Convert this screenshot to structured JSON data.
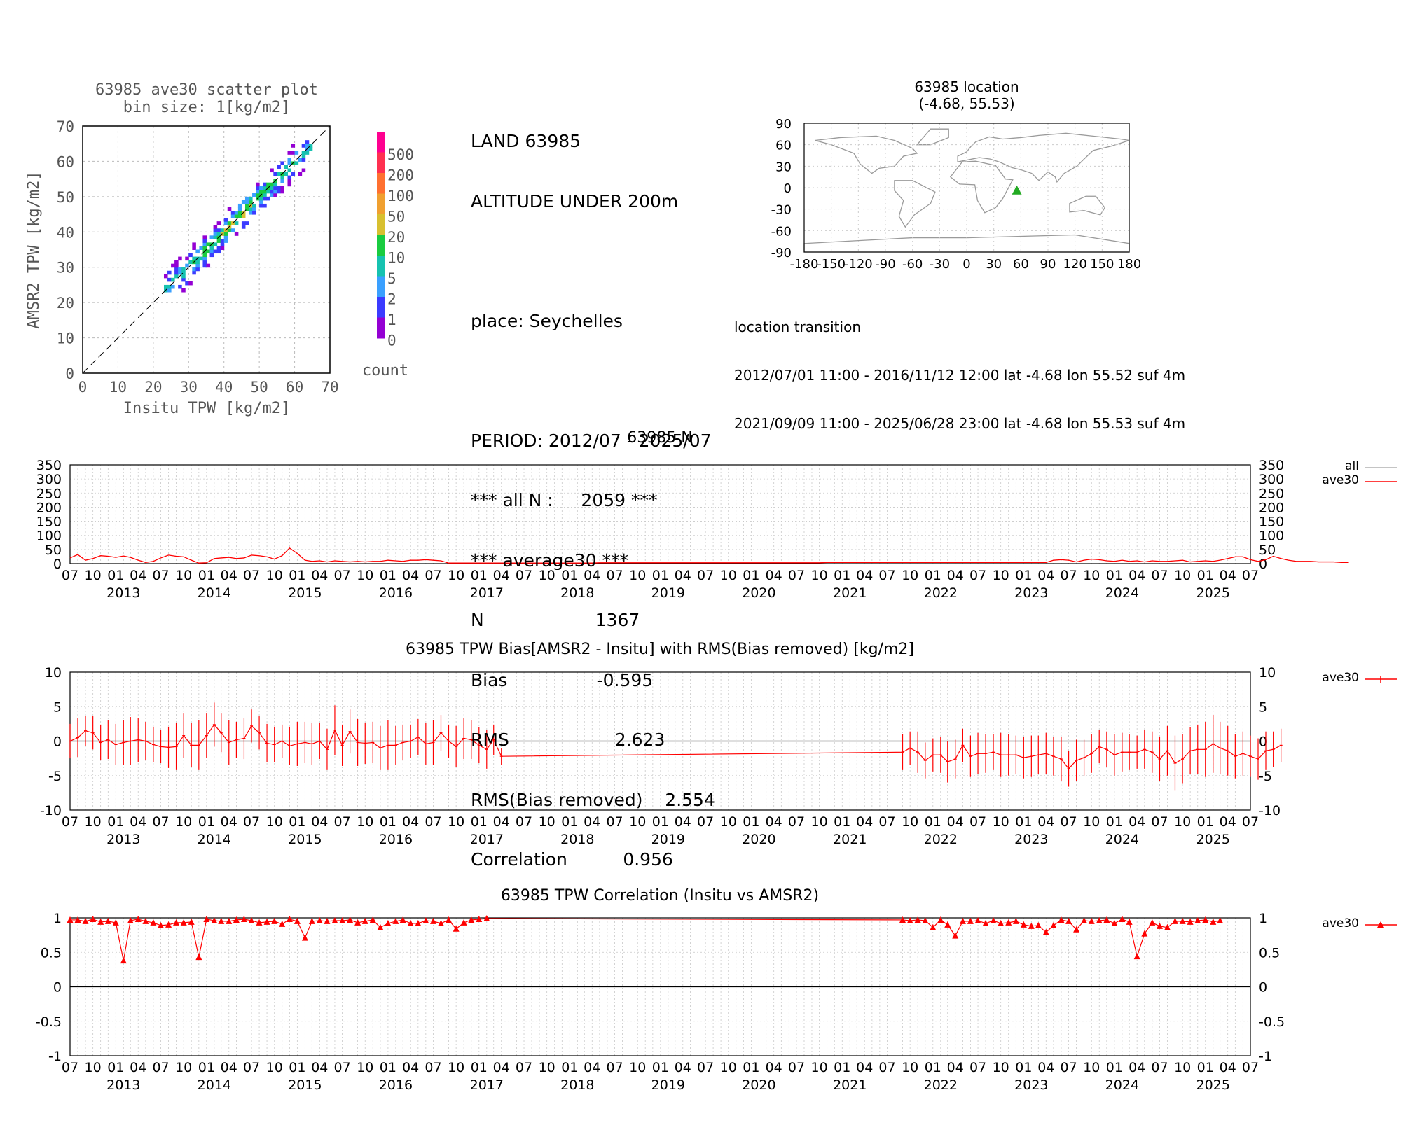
{
  "header": {
    "stats": [
      "LAND 63985",
      "ALTITUDE UNDER 200m",
      "",
      "place: Seychelles",
      "",
      "PERIOD: 2012/07 - 2025/07",
      "*** all N :     2059 ***",
      "*** average30 ***",
      "N                    1367",
      "Bias                -0.595",
      "RMS                   2.623",
      "RMS(Bias removed)    2.554",
      "Correlation          0.956"
    ]
  },
  "location_transition": {
    "title": "location transition",
    "lines": [
      "2012/07/01 11:00 - 2016/11/12 12:00 lat -4.68 lon 55.52 suf 4m",
      "2021/09/09 11:00 - 2025/06/28 23:00 lat -4.68 lon 55.53 suf 4m"
    ]
  },
  "colors": {
    "series": "#ff0000",
    "all_series": "#b0b0b0",
    "marker_map": "#22aa22"
  },
  "chart_data": [
    {
      "type": "heatmap",
      "title": "63985 ave30 scatter plot",
      "subtitle": "bin size: 1[kg/m2]",
      "xlabel": "Insitu TPW [kg/m2]",
      "ylabel": "AMSR2 TPW [kg/m2]",
      "xlim": [
        0,
        70
      ],
      "ylim": [
        0,
        70
      ],
      "ticks": [
        0,
        10,
        20,
        30,
        40,
        50,
        60,
        70
      ],
      "colorbar": {
        "label": "count",
        "levels": [
          "500",
          "200",
          "100",
          "50",
          "20",
          "10",
          "5",
          "2",
          "1",
          "0"
        ]
      },
      "one_to_one_line": true
    },
    {
      "type": "scatter",
      "title": "63985 location",
      "subtitle": "(-4.68, 55.53)",
      "xlim": [
        -180,
        180
      ],
      "ylim": [
        -90,
        90
      ],
      "xticks": [
        "-180",
        "-150",
        "-120",
        "-90",
        "-60",
        "-30",
        "0",
        "30",
        "60",
        "90",
        "120",
        "150",
        "180"
      ],
      "yticks": [
        "90",
        "60",
        "30",
        "0",
        "-30",
        "-60",
        "-90"
      ],
      "points": [
        {
          "lon": 55.53,
          "lat": -4.68
        }
      ]
    },
    {
      "type": "line",
      "title": "63985 N",
      "ylim": [
        0,
        350
      ],
      "yticks": [
        "350",
        "300",
        "250",
        "200",
        "150",
        "100",
        "50",
        "0"
      ],
      "legend": [
        "all",
        "ave30"
      ],
      "x_start": "2012-07",
      "series": [
        {
          "name": "ave30",
          "values": [
            20,
            32,
            12,
            18,
            28,
            26,
            22,
            27,
            22,
            12,
            4,
            8,
            20,
            30,
            26,
            24,
            12,
            2,
            3,
            18,
            20,
            22,
            18,
            20,
            30,
            28,
            24,
            16,
            28,
            55,
            36,
            12,
            8,
            10,
            6,
            10,
            8,
            6,
            8,
            6,
            8,
            8,
            12,
            10,
            8,
            12,
            12,
            14,
            12,
            10,
            2,
            2,
            2,
            2,
            2,
            2,
            2,
            2,
            2,
            2,
            2,
            2,
            2,
            2,
            2,
            2,
            2,
            2,
            2,
            2,
            3,
            3,
            3,
            3,
            3,
            3,
            3,
            3,
            3,
            3,
            3,
            3,
            3,
            3,
            3,
            3,
            3,
            3,
            3,
            3,
            3,
            3,
            3,
            3,
            3,
            3,
            3,
            3,
            3,
            3,
            4,
            4,
            4,
            4,
            4,
            4,
            4,
            4,
            4,
            4,
            4,
            4,
            4,
            4,
            4,
            4,
            4,
            4,
            4,
            4,
            4,
            4,
            4,
            4,
            4,
            4,
            4,
            4,
            4,
            4,
            12,
            14,
            12,
            6,
            12,
            16,
            14,
            10,
            8,
            12,
            8,
            10,
            6,
            10,
            8,
            8,
            10,
            12,
            6,
            8,
            10,
            8,
            12,
            18,
            24,
            24,
            14,
            8,
            14,
            26,
            18,
            12,
            8,
            8,
            8,
            6,
            6,
            6,
            4,
            4
          ]
        }
      ]
    },
    {
      "type": "line",
      "title": "63985 TPW Bias[AMSR2 - Insitu] with RMS(Bias removed) [kg/m2]",
      "ylim": [
        -10,
        10
      ],
      "yticks": [
        "10",
        "5",
        "0",
        "-5",
        "-10"
      ],
      "legend": [
        "ave30"
      ],
      "x_start": "2012-07",
      "series": [
        {
          "name": "ave30",
          "segment1_start": "2012-07",
          "bias": [
            0,
            0.5,
            1.5,
            1.2,
            -0.2,
            0.2,
            -0.5,
            -0.2,
            0,
            0.2,
            0,
            -0.5,
            -0.8,
            -0.9,
            -0.8,
            0.8,
            -0.6,
            -0.6,
            0.8,
            2.4,
            1.2,
            -0.2,
            0.2,
            0.4,
            2.2,
            1.2,
            -0.3,
            -0.5,
            0,
            -0.7,
            -0.4,
            -0.2,
            -0.4,
            0,
            -1.2,
            1.6,
            -0.6,
            1.4,
            -0.2,
            -0.3,
            -0.2,
            -1,
            -0.6,
            -0.6,
            -0.2,
            0,
            0.6,
            -0.4,
            -0.2,
            1.2,
            0,
            -0.8,
            0.4,
            0.2,
            -0.6,
            -1.2,
            0.2,
            -2.2
          ],
          "rms": [
            2.5,
            2.8,
            2.2,
            2.4,
            2.6,
            2.8,
            3,
            3.2,
            3.5,
            3.2,
            2.8,
            2.6,
            2.4,
            3,
            3.4,
            3.2,
            3.2,
            3.6,
            3.2,
            3.2,
            2.8,
            3.2,
            2.6,
            3,
            2.4,
            2.4,
            2.8,
            2.6,
            2.4,
            2.8,
            3.2,
            3,
            3,
            2.6,
            3,
            3.6,
            3,
            3.2,
            3.4,
            3,
            3,
            3.2,
            3.6,
            2.8,
            2.6,
            2.4,
            2.6,
            3,
            3.2,
            2.6,
            2.4,
            3,
            3,
            2.8,
            2.6,
            2.8,
            2.2,
            1.2
          ]
        },
        {
          "name": "ave30",
          "segment2_start": "2021-09",
          "bias": [
            -1.6,
            -1,
            -1.6,
            -2.8,
            -2,
            -2,
            -3,
            -2.6,
            -0.6,
            -2.2,
            -1.8,
            -1.8,
            -1.6,
            -2,
            -2,
            -2,
            -2.4,
            -2.2,
            -2,
            -1.8,
            -2.2,
            -2.6,
            -4,
            -2.8,
            -2.4,
            -1.8,
            -0.8,
            -1.2,
            -2,
            -1.6,
            -1.6,
            -1.6,
            -1.2,
            -1.6,
            -2.6,
            -1.4,
            -3.2,
            -2.6,
            -1.4,
            -1.2,
            -1.2,
            -0.4,
            -1,
            -1.4,
            -2.2,
            -1.8,
            -2.2,
            -2.6,
            -1.4,
            -1.2,
            -0.6
          ],
          "rms": [
            2.6,
            2.4,
            3,
            2.6,
            2.4,
            2.6,
            3,
            2.8,
            2.4,
            3,
            3,
            2.8,
            2.6,
            3.2,
            3,
            2.8,
            3,
            3,
            2.8,
            3,
            2.8,
            3.2,
            2.6,
            3,
            2.6,
            2.8,
            2.4,
            2.6,
            3,
            2.8,
            2.6,
            2.4,
            2.8,
            3,
            3.2,
            3.6,
            4,
            3.6,
            3.4,
            3.6,
            4,
            4.2,
            3.8,
            3.6,
            3.2,
            3.2,
            3,
            3,
            2.8,
            2.6,
            2.4
          ]
        }
      ]
    },
    {
      "type": "line",
      "title": "63985 TPW Correlation (Insitu vs AMSR2)",
      "ylim": [
        -1,
        1
      ],
      "yticks": [
        "1",
        "0.5",
        "0",
        "-0.5",
        "-1"
      ],
      "legend": [
        "ave30"
      ],
      "x_start": "2012-07",
      "series": [
        {
          "name": "ave30",
          "segment1_start": "2012-07",
          "values": [
            0.97,
            0.97,
            0.95,
            0.98,
            0.94,
            0.95,
            0.93,
            0.38,
            0.96,
            0.98,
            0.95,
            0.93,
            0.89,
            0.9,
            0.93,
            0.93,
            0.94,
            0.43,
            0.98,
            0.96,
            0.95,
            0.95,
            0.97,
            0.98,
            0.96,
            0.93,
            0.94,
            0.95,
            0.91,
            0.98,
            0.95,
            0.71,
            0.95,
            0.96,
            0.95,
            0.96,
            0.96,
            0.97,
            0.93,
            0.95,
            0.97,
            0.86,
            0.92,
            0.95,
            0.97,
            0.92,
            0.92,
            0.96,
            0.95,
            0.92,
            0.97,
            0.84,
            0.93,
            0.97,
            0.98,
            0.99
          ]
        },
        {
          "name": "ave30",
          "segment2_start": "2021-09",
          "values": [
            0.97,
            0.96,
            0.97,
            0.96,
            0.86,
            0.97,
            0.9,
            0.74,
            0.95,
            0.95,
            0.96,
            0.92,
            0.96,
            0.92,
            0.93,
            0.95,
            0.9,
            0.88,
            0.89,
            0.79,
            0.89,
            0.97,
            0.95,
            0.83,
            0.96,
            0.95,
            0.96,
            0.97,
            0.92,
            0.98,
            0.94,
            0.44,
            0.77,
            0.93,
            0.88,
            0.86,
            0.95,
            0.95,
            0.94,
            0.96,
            0.97,
            0.94,
            0.96
          ]
        }
      ]
    }
  ],
  "timeaxis": {
    "month_labels": [
      "07",
      "10",
      "01",
      "04"
    ],
    "years": [
      "2013",
      "2014",
      "2015",
      "2016",
      "2017",
      "2018",
      "2019",
      "2020",
      "2021",
      "2022",
      "2023",
      "2024",
      "2025"
    ]
  }
}
